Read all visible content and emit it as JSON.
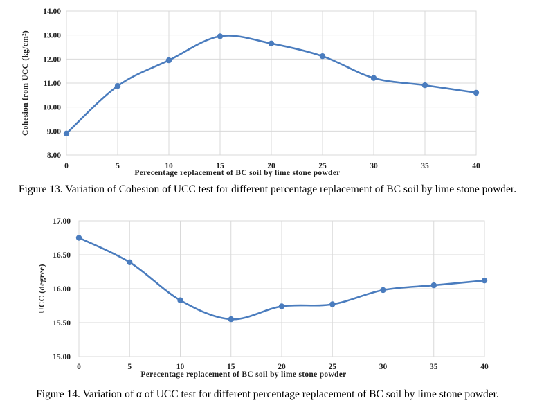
{
  "figures": [
    {
      "caption": "Figure 13. Variation of Cohesion of UCC test for different percentage replacement of BC soil by lime stone powder."
    },
    {
      "caption": "Figure 14. Variation of α of UCC test for different percentage replacement of BC soil by lime stone powder."
    }
  ],
  "colors": {
    "series_blue": "#4a7cbe",
    "gridline": "#d9d9d9",
    "axis_text": "#1f1f1f"
  },
  "chart_data": [
    {
      "type": "line",
      "title": "",
      "xlabel": "Perecentage replacement of BC soil by lime stone powder",
      "ylabel": "Cohesion from UCC (kg/cm²)",
      "x": [
        0,
        5,
        10,
        15,
        20,
        25,
        30,
        35,
        40
      ],
      "series": [
        {
          "name": "Cohesion from UCC",
          "values": [
            8.9,
            10.88,
            11.95,
            12.95,
            12.65,
            12.12,
            11.21,
            10.91,
            10.6
          ]
        }
      ],
      "xlim": [
        0,
        40
      ],
      "ylim": [
        8,
        14
      ],
      "xtick_step": 5,
      "ytick_step": 1,
      "ytick_decimals": 2,
      "grid": true,
      "legend": "none",
      "smooth": true,
      "marker": "circle"
    },
    {
      "type": "line",
      "title": "",
      "xlabel": "Perecentage replacement of BC soil by lime stone powder",
      "ylabel": "UCC (degree)",
      "x": [
        0,
        5,
        10,
        15,
        20,
        25,
        30,
        35,
        40
      ],
      "series": [
        {
          "name": "UCC alpha",
          "values": [
            16.75,
            16.39,
            15.83,
            15.55,
            15.74,
            15.77,
            15.98,
            16.05,
            16.12
          ]
        }
      ],
      "xlim": [
        0,
        40
      ],
      "ylim": [
        15,
        17
      ],
      "xtick_step": 5,
      "ytick_step": 0.5,
      "ytick_decimals": 2,
      "grid": true,
      "legend": "none",
      "smooth": true,
      "marker": "circle"
    }
  ]
}
